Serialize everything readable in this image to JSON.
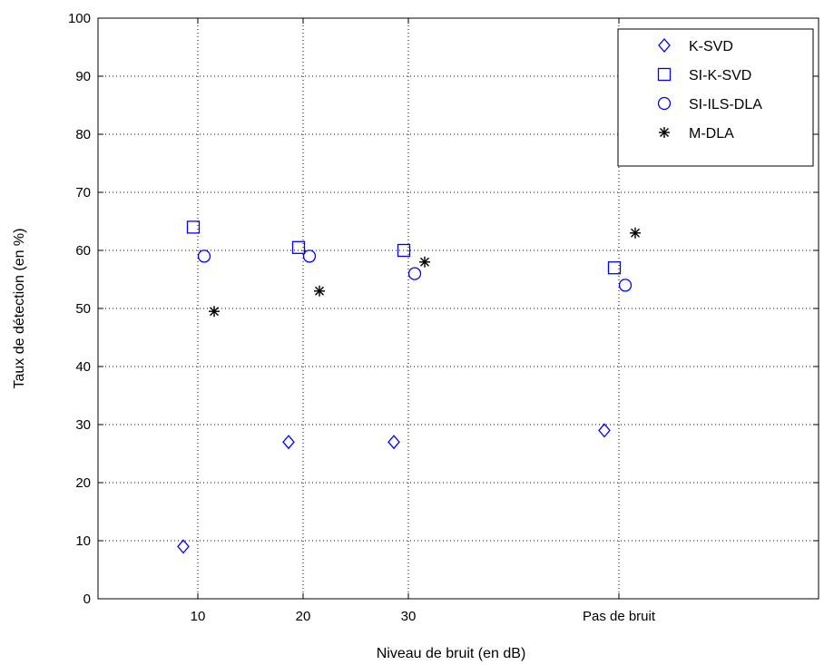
{
  "chart_data": {
    "type": "scatter",
    "xlabel": "Niveau de bruit (en dB)",
    "ylabel": "Taux de détection (en %)",
    "ylim": [
      0,
      100
    ],
    "yticks": [
      0,
      10,
      20,
      30,
      40,
      50,
      60,
      70,
      80,
      90,
      100
    ],
    "categories": [
      "10",
      "20",
      "30",
      "Pas de bruit"
    ],
    "grid": true,
    "legend_position": "top-right",
    "series": [
      {
        "name": "K-SVD",
        "marker": "diamond",
        "color": "#0000ff",
        "values": [
          9,
          27,
          27,
          29
        ]
      },
      {
        "name": "SI-K-SVD",
        "marker": "square",
        "color": "#0000ff",
        "values": [
          64,
          60.5,
          60,
          57
        ]
      },
      {
        "name": "SI-ILS-DLA",
        "marker": "circle",
        "color": "#0000ff",
        "values": [
          59,
          59,
          56,
          54
        ]
      },
      {
        "name": "M-DLA",
        "marker": "star",
        "color": "#000000",
        "values": [
          49.5,
          53,
          58,
          63
        ]
      }
    ]
  }
}
